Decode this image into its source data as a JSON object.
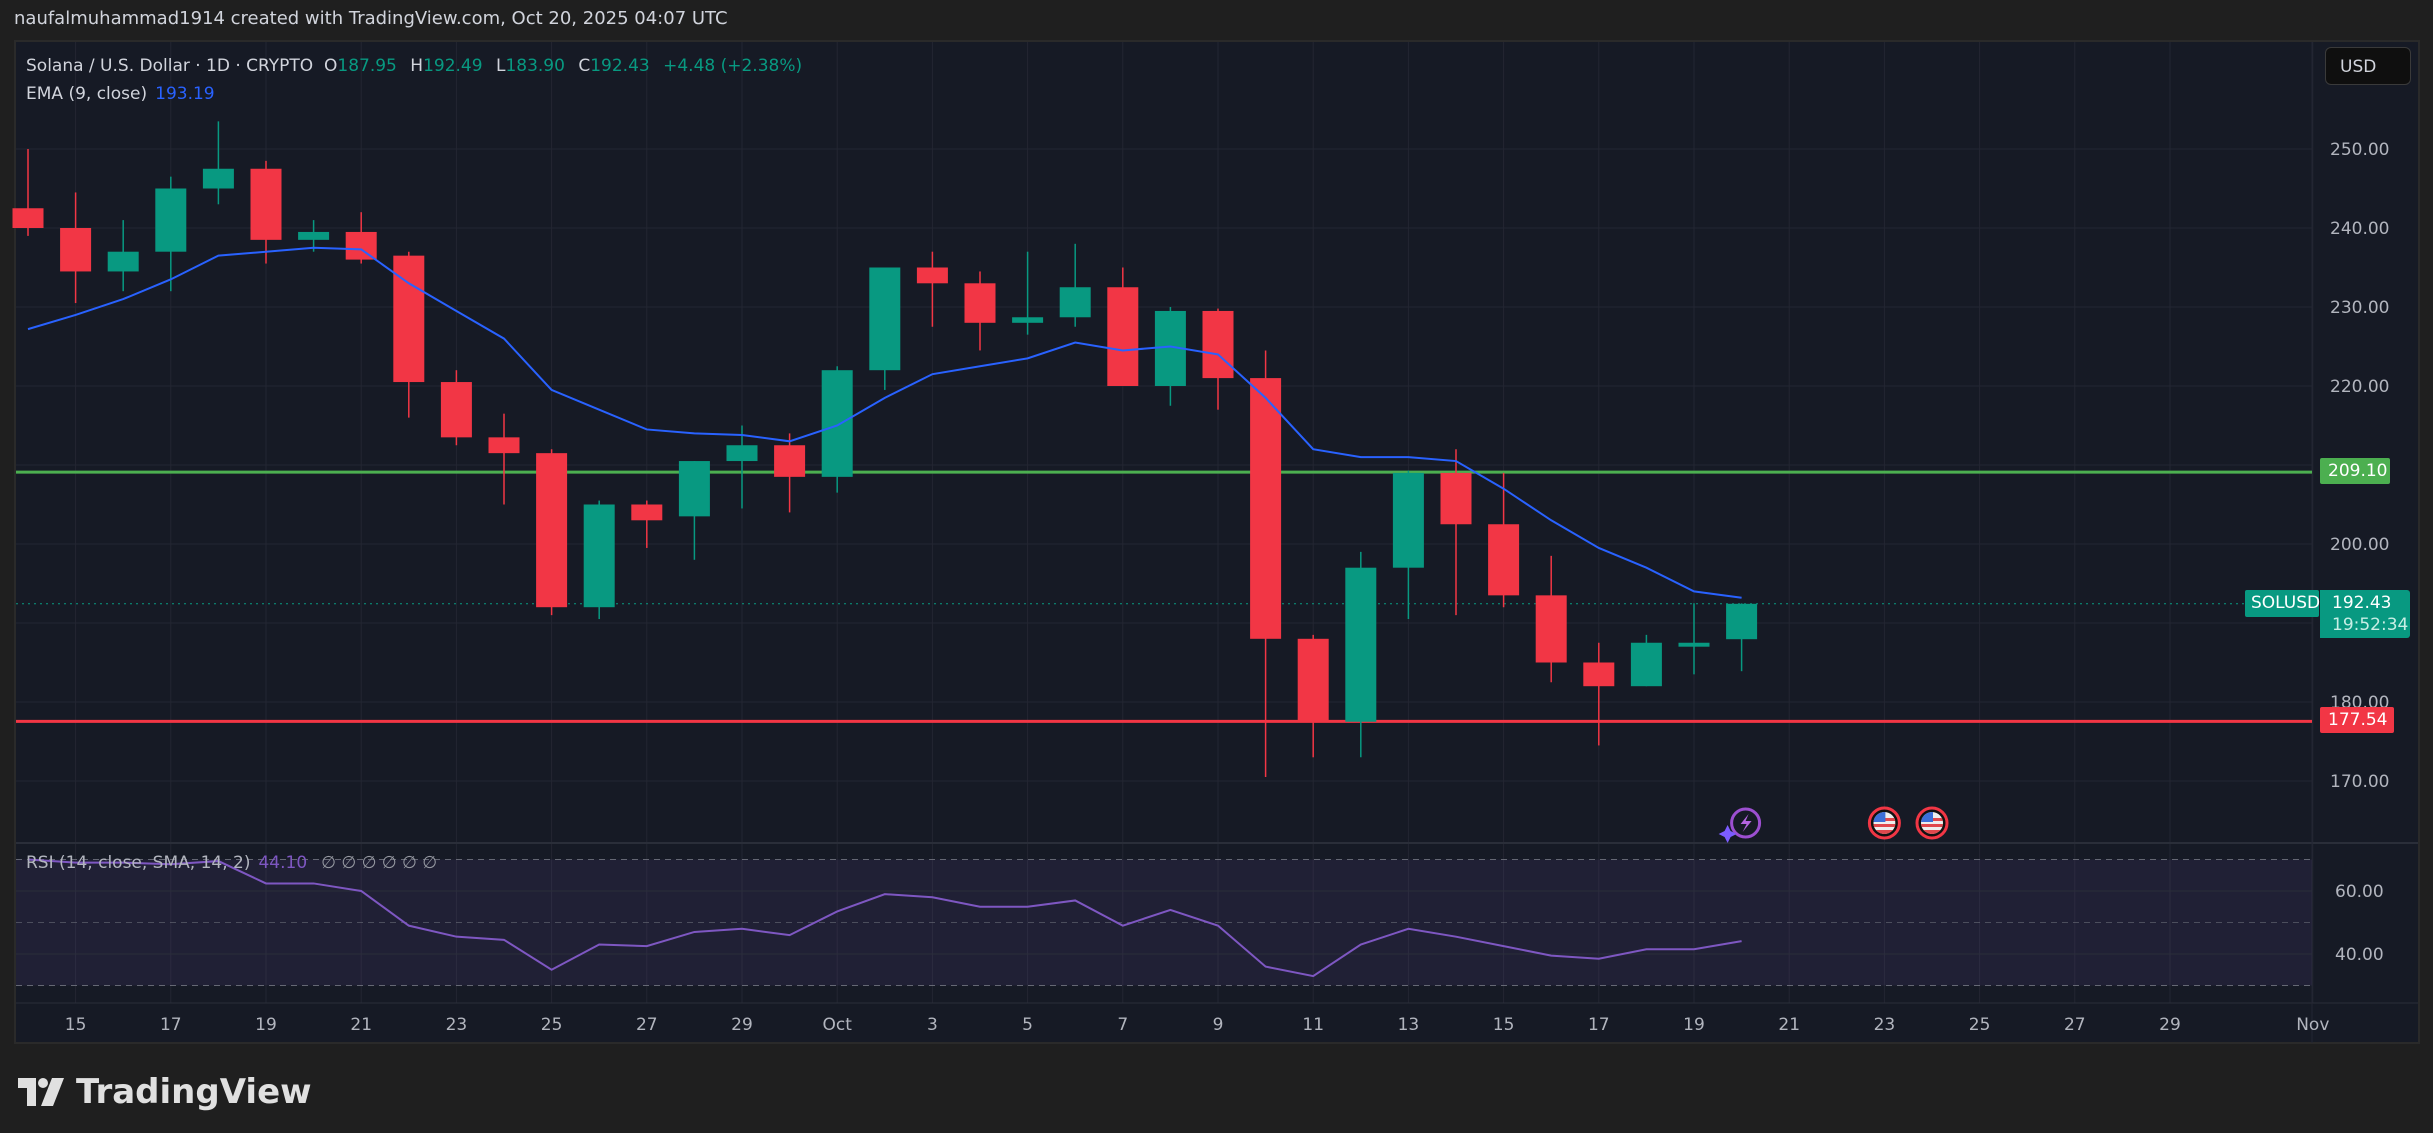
{
  "credit": "naufalmuhammad1914 created with TradingView.com, Oct 20, 2025 04:07 UTC",
  "legend": {
    "symbol": "Solana / U.S. Dollar · 1D · CRYPTO",
    "o_label": "O",
    "o": "187.95",
    "h_label": "H",
    "h": "192.49",
    "l_label": "L",
    "l": "183.90",
    "c_label": "C",
    "c": "192.43",
    "change": "+4.48 (+2.38%)",
    "ema_label": "EMA (9, close)",
    "ema_value": "193.19"
  },
  "rsi_legend": {
    "label": "RSI (14, close, SMA, 14, 2)",
    "value": "44.10",
    "nulls": "∅ ∅ ∅ ∅ ∅ ∅"
  },
  "currency_button": "USD",
  "price_tags": {
    "symbol": "SOLUSD",
    "last": "192.43",
    "countdown": "19:52:34",
    "resistance": "209.10",
    "support": "177.54"
  },
  "colors": {
    "up": "#089981",
    "down": "#f23645",
    "ema": "#2962ff",
    "rsi": "#7e57c2",
    "resistance": "#4caf50",
    "support": "#f23645"
  },
  "logo_text": "TradingView",
  "events": [
    {
      "date": "Oct 20",
      "icon": "lightning-event-icon"
    },
    {
      "date": "Oct 23",
      "icon": "us-flag-icon"
    },
    {
      "date": "Oct 24",
      "icon": "us-flag-icon"
    }
  ],
  "chart_data": {
    "type": "candlestick",
    "symbol": "SOLUSD",
    "interval": "1D",
    "dates": [
      "Sep 14",
      "Sep 15",
      "Sep 16",
      "Sep 17",
      "Sep 18",
      "Sep 19",
      "Sep 20",
      "Sep 21",
      "Sep 22",
      "Sep 23",
      "Sep 24",
      "Sep 25",
      "Sep 26",
      "Sep 27",
      "Sep 28",
      "Sep 29",
      "Sep 30",
      "Oct 1",
      "Oct 2",
      "Oct 3",
      "Oct 4",
      "Oct 5",
      "Oct 6",
      "Oct 7",
      "Oct 8",
      "Oct 9",
      "Oct 10",
      "Oct 11",
      "Oct 12",
      "Oct 13",
      "Oct 14",
      "Oct 15",
      "Oct 16",
      "Oct 17",
      "Oct 18",
      "Oct 19",
      "Oct 20"
    ],
    "ohlc": [
      [
        242.5,
        250,
        239,
        240
      ],
      [
        240,
        244.5,
        230.5,
        234.5
      ],
      [
        234.5,
        241,
        232,
        237
      ],
      [
        237,
        246.5,
        232,
        245
      ],
      [
        245,
        253.5,
        243,
        247.5
      ],
      [
        247.5,
        248.5,
        235.5,
        238.5
      ],
      [
        238.5,
        241,
        237,
        239.5
      ],
      [
        239.5,
        242,
        235.5,
        236
      ],
      [
        236.5,
        237,
        216,
        220.5
      ],
      [
        220.5,
        222,
        212.5,
        213.5
      ],
      [
        213.5,
        216.5,
        205,
        211.5
      ],
      [
        211.5,
        212,
        191,
        192
      ],
      [
        192,
        205.5,
        190.5,
        205
      ],
      [
        205,
        205.5,
        199.5,
        203
      ],
      [
        203.5,
        210.5,
        198,
        210.5
      ],
      [
        210.5,
        215,
        204.5,
        212.5
      ],
      [
        212.5,
        214,
        204,
        208.5
      ],
      [
        208.5,
        222.5,
        206.5,
        222
      ],
      [
        222,
        235,
        219.5,
        235
      ],
      [
        235,
        237,
        227.5,
        233
      ],
      [
        233,
        234.5,
        224.5,
        228
      ],
      [
        228,
        237,
        226.5,
        228.7
      ],
      [
        228.7,
        238,
        227.5,
        232.5
      ],
      [
        232.5,
        235,
        220,
        220
      ],
      [
        220,
        230,
        217.5,
        229.5
      ],
      [
        229.5,
        229.8,
        217,
        221
      ],
      [
        221,
        224.5,
        170.5,
        188
      ],
      [
        188,
        188.5,
        173,
        177.5
      ],
      [
        177.5,
        199,
        173,
        197
      ],
      [
        197,
        209.3,
        190.5,
        209
      ],
      [
        209,
        212,
        191,
        202.5
      ],
      [
        202.5,
        209,
        192,
        193.5
      ],
      [
        193.5,
        198.5,
        182.5,
        185
      ],
      [
        185,
        187.5,
        174.5,
        182
      ],
      [
        182,
        188.5,
        182,
        187.5
      ],
      [
        187,
        192.5,
        183.5,
        187.5
      ],
      [
        187.95,
        192.49,
        183.9,
        192.43
      ]
    ],
    "ema9": [
      227.2,
      229,
      231,
      233.5,
      236.5,
      237,
      237.5,
      237.3,
      233,
      229.5,
      226,
      219.5,
      217,
      214.5,
      214,
      213.8,
      213,
      215,
      218.5,
      221.5,
      222.5,
      223.5,
      225.5,
      224.5,
      225,
      224,
      218.5,
      212,
      211,
      211,
      210.5,
      207,
      203,
      199.5,
      197,
      194,
      193.19
    ],
    "rsi14": [
      70,
      69,
      69,
      68.5,
      69.5,
      62.4,
      62.4,
      60,
      49,
      45.5,
      44.5,
      35,
      43,
      42.5,
      47,
      48,
      46,
      53.5,
      59,
      58,
      55,
      55,
      57,
      49,
      54,
      49,
      36,
      33,
      43,
      48,
      45.5,
      42.5,
      39.5,
      38.5,
      41.5,
      41.5,
      44.1
    ],
    "rsi_levels": [
      70,
      50,
      30
    ],
    "horizontal_lines": [
      {
        "value": 209.1,
        "color": "#4caf50"
      },
      {
        "value": 177.54,
        "color": "#f23645"
      }
    ],
    "price_ticks": [
      "250.00",
      "240.00",
      "230.00",
      "220.00",
      "210.00",
      "200.00",
      "190.00",
      "180.00",
      "170.00"
    ],
    "price_tick_values": [
      250,
      240,
      230,
      220,
      210,
      200,
      190,
      180,
      170
    ],
    "hidden_price_ticks": [
      "210.00",
      "190.00"
    ],
    "rsi_ticks": [
      "60.00",
      "40.00"
    ],
    "rsi_tick_values": [
      60,
      40
    ],
    "time_ticks": [
      "15",
      "17",
      "19",
      "21",
      "23",
      "25",
      "27",
      "29",
      "Oct",
      "3",
      "5",
      "7",
      "9",
      "11",
      "13",
      "15",
      "17",
      "19",
      "21",
      "23",
      "25",
      "27",
      "29",
      "Nov"
    ],
    "time_tick_index": [
      1,
      3,
      5,
      7,
      9,
      11,
      13,
      15,
      17,
      19,
      21,
      23,
      25,
      27,
      29,
      31,
      33,
      35,
      37,
      39,
      41,
      43,
      45,
      48
    ],
    "ylim": [
      165,
      257
    ],
    "rsi_ylim": [
      25,
      75
    ]
  }
}
